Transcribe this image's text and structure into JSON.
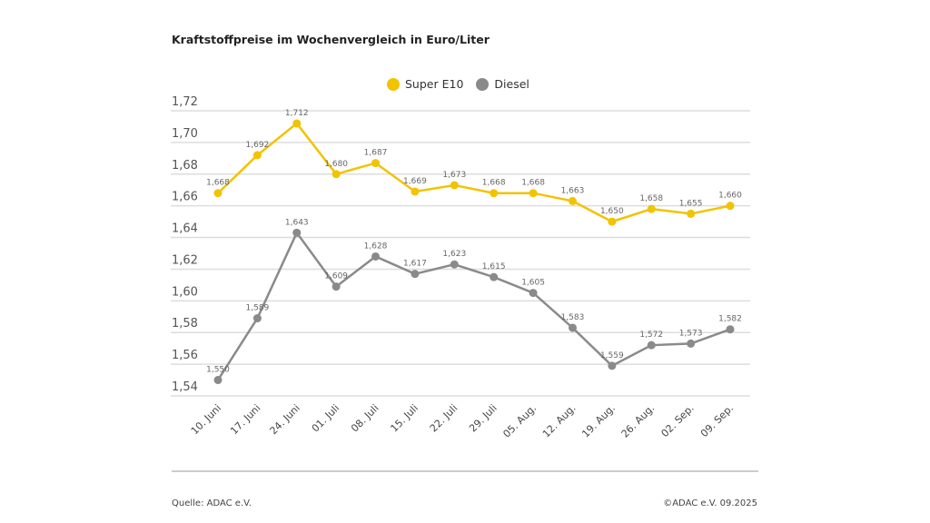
{
  "chart_data": {
    "type": "line",
    "title": "Kraftstoffpreise im Wochenvergleich in Euro/Liter",
    "categories": [
      "10. Juni",
      "17. Juni",
      "24. Juni",
      "01. Juli",
      "08. Juli",
      "15. Juli",
      "22. Juli",
      "29. Juli",
      "05. Aug.",
      "12. Aug.",
      "19. Aug.",
      "26. Aug.",
      "02. Sep.",
      "09. Sep."
    ],
    "series": [
      {
        "name": "Super E10",
        "color": "#f2c300",
        "values": [
          1.668,
          1.692,
          1.712,
          1.68,
          1.687,
          1.669,
          1.673,
          1.668,
          1.668,
          1.663,
          1.65,
          1.658,
          1.655,
          1.66
        ],
        "labels": [
          "1,668",
          "1,692",
          "1,712",
          "1,680",
          "1,687",
          "1,669",
          "1,673",
          "1,668",
          "1,668",
          "1,663",
          "1,650",
          "1,658",
          "1,655",
          "1,660"
        ]
      },
      {
        "name": "Diesel",
        "color": "#8a8a8a",
        "values": [
          1.55,
          1.589,
          1.643,
          1.609,
          1.628,
          1.617,
          1.623,
          1.615,
          1.605,
          1.583,
          1.559,
          1.572,
          1.573,
          1.582
        ],
        "labels": [
          "1,550",
          "1,589",
          "1,643",
          "1,609",
          "1,628",
          "1,617",
          "1,623",
          "1,615",
          "1,605",
          "1,583",
          "1,559",
          "1,572",
          "1,573",
          "1,582"
        ]
      }
    ],
    "ylim": [
      1.54,
      1.72
    ],
    "yticks": [
      "1,54",
      "1,56",
      "1,58",
      "1,60",
      "1,62",
      "1,64",
      "1,66",
      "1,68",
      "1,70",
      "1,72"
    ],
    "grid": true,
    "legend": "top-center"
  },
  "footer": {
    "source": "Quelle: ADAC e.V.",
    "copyright": "©ADAC e.V. 09.2025"
  }
}
